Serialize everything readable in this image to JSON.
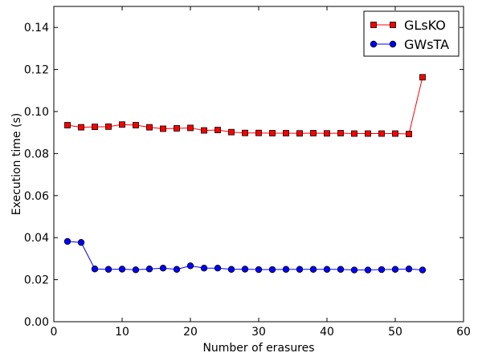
{
  "chart_data": {
    "type": "line",
    "xlabel": "Number of erasures",
    "ylabel": "Execution time (s)",
    "xlim": [
      0,
      60
    ],
    "ylim": [
      0,
      0.15
    ],
    "xticks": [
      "0",
      "10",
      "20",
      "30",
      "40",
      "50",
      "60"
    ],
    "yticks": [
      "0.00",
      "0.02",
      "0.04",
      "0.06",
      "0.08",
      "0.10",
      "0.12",
      "0.14"
    ],
    "grid": false,
    "legend_position": "top-right",
    "x": [
      2,
      4,
      6,
      8,
      10,
      12,
      14,
      16,
      18,
      20,
      22,
      24,
      26,
      28,
      30,
      32,
      34,
      36,
      38,
      40,
      42,
      44,
      46,
      48,
      50,
      52,
      54
    ],
    "series": [
      {
        "name": "GLsKO",
        "color": "#ff0000",
        "marker": "square",
        "values": [
          0.0935,
          0.0925,
          0.0927,
          0.0928,
          0.0938,
          0.0935,
          0.0925,
          0.0918,
          0.092,
          0.0922,
          0.091,
          0.0912,
          0.0902,
          0.0898,
          0.0898,
          0.0897,
          0.0897,
          0.0896,
          0.0897,
          0.0896,
          0.0897,
          0.0895,
          0.0895,
          0.0895,
          0.0895,
          0.0893,
          0.1163
        ]
      },
      {
        "name": "GWsTA",
        "color": "#0000ff",
        "marker": "circle",
        "values": [
          0.0382,
          0.0377,
          0.0251,
          0.0249,
          0.025,
          0.0247,
          0.0251,
          0.0255,
          0.0249,
          0.0266,
          0.0255,
          0.0255,
          0.0249,
          0.025,
          0.0248,
          0.0248,
          0.0249,
          0.0249,
          0.0249,
          0.0249,
          0.0249,
          0.0246,
          0.0246,
          0.0248,
          0.0249,
          0.0251,
          0.0246
        ]
      }
    ]
  }
}
